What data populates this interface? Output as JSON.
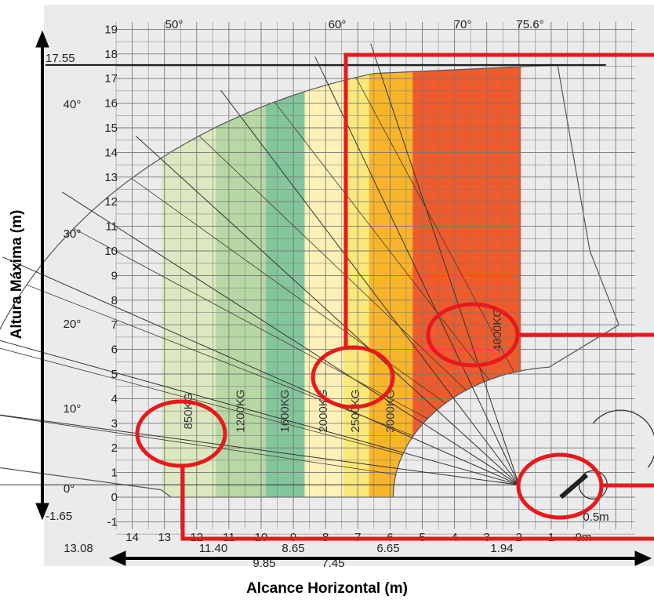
{
  "chart_data": {
    "type": "load-chart",
    "xlabel": "Alcance Horizontal  (m)",
    "ylabel": "Altura Máxima (m)",
    "xlim": [
      14.5,
      -1.5
    ],
    "ylim": [
      -1.5,
      19.5
    ],
    "x_ticks": [
      "14",
      "13",
      "12",
      "11",
      "10",
      "9",
      "8",
      "7",
      "6",
      "5",
      "4",
      "3",
      "2",
      "1",
      "0m"
    ],
    "y_ticks": [
      "19",
      "18",
      "17",
      "16",
      "15",
      "14",
      "13",
      "12",
      "11",
      "10",
      "9",
      "8",
      "7",
      "6",
      "5",
      "4",
      "3",
      "2",
      "1",
      "0",
      "-1"
    ],
    "angle_labels": [
      {
        "text": "50°"
      },
      {
        "text": "60°"
      },
      {
        "text": "70°"
      },
      {
        "text": "75.6°"
      },
      {
        "text": "40°"
      },
      {
        "text": "30°"
      },
      {
        "text": "20°"
      },
      {
        "text": "10°"
      },
      {
        "text": "0°"
      }
    ],
    "reach_labels": [
      "13.08",
      "11.40",
      "9.85",
      "8.65",
      "7.45",
      "6.65",
      "1.94"
    ],
    "max_height_label": "17.55",
    "min_height_label": "-1.65",
    "zones": [
      {
        "label": "850KG",
        "x_from": 13.08,
        "x_to": 11.4,
        "color": "#dbe8c0"
      },
      {
        "label": "1200KG",
        "x_from": 11.4,
        "x_to": 9.85,
        "color": "#b7d8a4"
      },
      {
        "label": "1600KG",
        "x_from": 9.85,
        "x_to": 8.65,
        "color": "#83c69c"
      },
      {
        "label": "2000KG",
        "x_from": 8.65,
        "x_to": 7.45,
        "color": "#fdf1b8"
      },
      {
        "label": "2500KG",
        "x_from": 7.45,
        "x_to": 6.65,
        "color": "#fbe87a"
      },
      {
        "label": "3000KG",
        "x_from": 6.65,
        "x_to": 5.3,
        "color": "#f8b52a"
      },
      {
        "label": "4000KG",
        "x_from": 5.3,
        "x_to": 1.94,
        "color": "#ee5b2c"
      }
    ],
    "boom_pivot_height": 0.5,
    "boom_pivot_label": "0.5m",
    "highlighted_labels": [
      "4000KG",
      "2500KG",
      "850KG"
    ]
  }
}
